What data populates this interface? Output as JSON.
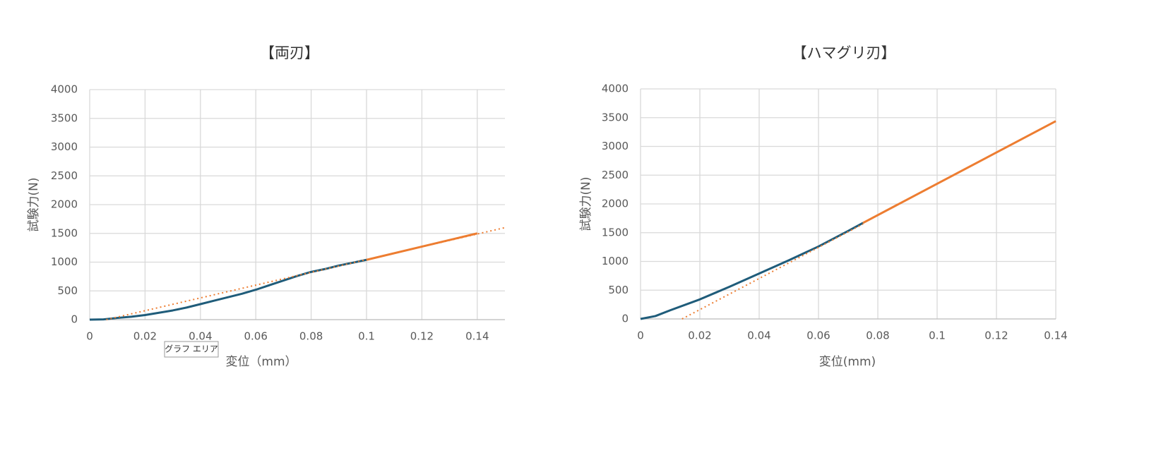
{
  "chart_data": [
    {
      "type": "line",
      "title": "【両刃】",
      "x_label": "変位（mm）",
      "y_label": "試験力(N)",
      "xlim": [
        0,
        0.15
      ],
      "xticks": [
        0,
        0.02,
        0.04,
        0.06,
        0.08,
        0.1,
        0.12,
        0.14
      ],
      "ylim": [
        0,
        4000
      ],
      "yticks": [
        0,
        500,
        1000,
        1500,
        2000,
        2500,
        3000,
        3500,
        4000
      ],
      "grid": true,
      "series": [
        {
          "color": "#1f5c7a",
          "dash": false,
          "x": [
            0,
            0.005,
            0.01,
            0.015,
            0.02,
            0.025,
            0.03,
            0.035,
            0.04,
            0.045,
            0.05,
            0.055,
            0.06,
            0.065,
            0.07,
            0.075,
            0.08,
            0.085,
            0.09,
            0.095,
            0.1
          ],
          "values": [
            0,
            5,
            30,
            50,
            80,
            120,
            160,
            210,
            270,
            330,
            390,
            450,
            520,
            600,
            680,
            760,
            830,
            880,
            940,
            990,
            1040
          ]
        },
        {
          "color": "#ed7d31",
          "dash": false,
          "x": [
            0.1,
            0.14
          ],
          "values": [
            1040,
            1500
          ]
        },
        {
          "color": "#ed7d31",
          "dash": true,
          "x": [
            0.006,
            0.15
          ],
          "values": [
            0,
            1600
          ]
        }
      ]
    },
    {
      "type": "line",
      "title": "【ハマグリ刃】",
      "x_label": "変位(mm)",
      "y_label": "試験力(N)",
      "xlim": [
        0,
        0.14
      ],
      "xticks": [
        0,
        0.02,
        0.04,
        0.06,
        0.08,
        0.1,
        0.12,
        0.14
      ],
      "ylim": [
        0,
        4000
      ],
      "yticks": [
        0,
        500,
        1000,
        1500,
        2000,
        2500,
        3000,
        3500,
        4000
      ],
      "grid": true,
      "series": [
        {
          "color": "#1f5c7a",
          "dash": false,
          "x": [
            0,
            0.005,
            0.01,
            0.02,
            0.03,
            0.04,
            0.05,
            0.06,
            0.07,
            0.075
          ],
          "values": [
            0,
            50,
            150,
            340,
            560,
            790,
            1020,
            1260,
            1530,
            1670
          ]
        },
        {
          "color": "#ed7d31",
          "dash": false,
          "x": [
            0.075,
            0.14
          ],
          "values": [
            1670,
            3440
          ]
        },
        {
          "color": "#ed7d31",
          "dash": true,
          "x": [
            0.014,
            0.075
          ],
          "values": [
            0,
            1650
          ]
        }
      ]
    }
  ],
  "tooltip": "グラフ エリア"
}
